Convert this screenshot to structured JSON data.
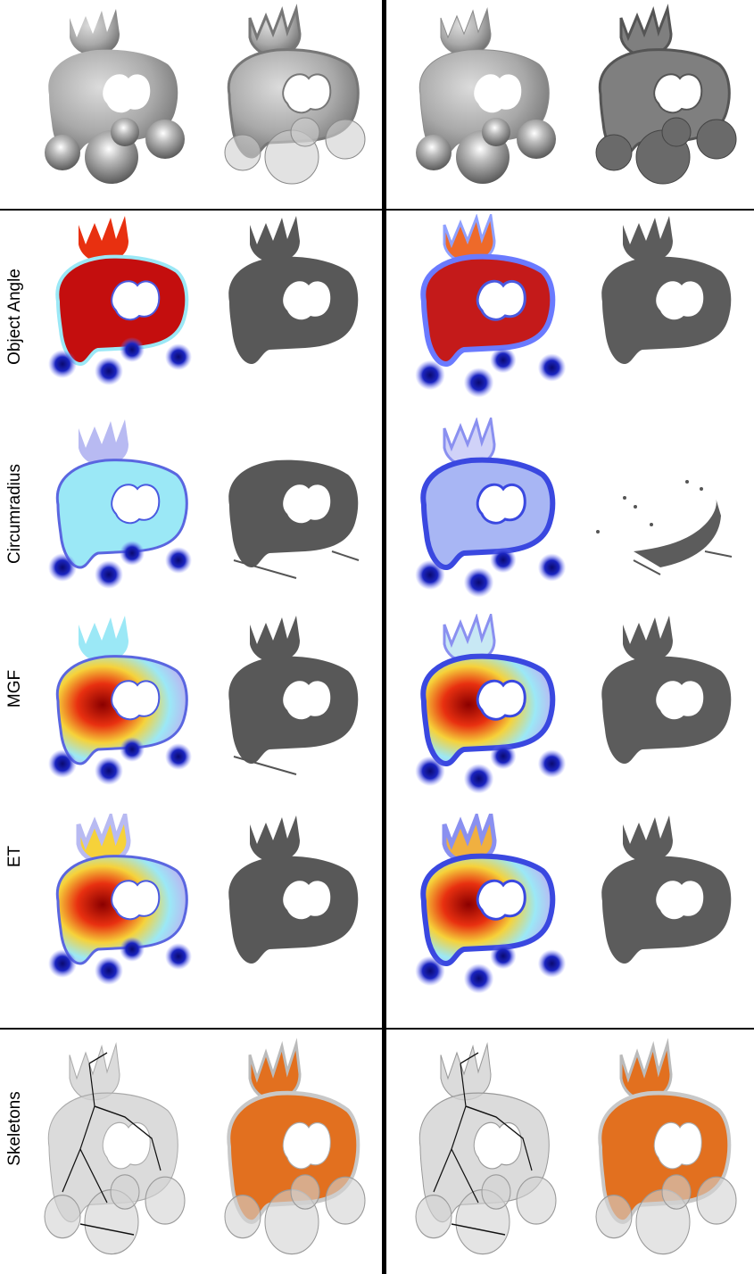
{
  "rows": [
    {
      "label": ""
    },
    {
      "label": "Object Angle"
    },
    {
      "label": "Circumradius"
    },
    {
      "label": "MGF"
    },
    {
      "label": "ET"
    },
    {
      "label": "Skeletons"
    }
  ],
  "colors": {
    "shape_gray": "#a9a9a9",
    "shape_dark": "#585858",
    "skeleton_orange": "#e2701f",
    "heat_red": "#cc1010",
    "heat_cyan": "#9be8f6",
    "spike_blue": "#1a24c0",
    "crown_lavender": "#b8baf2",
    "ghost_gray": "#d2d2d2"
  },
  "panel_types": {
    "row0": [
      "shaded-smooth",
      "shaded-spiky",
      "shaded-noisy",
      "shaded-noisy-spiky"
    ],
    "row1": [
      "heatmap-angle",
      "mask-dark",
      "heatmap-angle-noisy",
      "mask-dark-sparse"
    ],
    "row2": [
      "heatmap-circumradius",
      "mask-dark",
      "heatmap-circumradius-noisy",
      "mask-scatter"
    ],
    "row3": [
      "heatmap-mgf",
      "mask-dark",
      "heatmap-mgf-noisy",
      "mask-dark"
    ],
    "row4": [
      "heatmap-et",
      "mask-dark",
      "heatmap-et-noisy",
      "mask-dark"
    ],
    "row5": [
      "skeleton-curves",
      "skeleton-orange",
      "skeleton-curves-noisy",
      "skeleton-orange-noisy"
    ]
  }
}
